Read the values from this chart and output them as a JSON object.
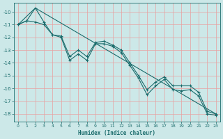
{
  "xlabel": "Humidex (Indice chaleur)",
  "bg_color": "#cce8e8",
  "grid_color_h": "#e8a0a0",
  "grid_color_v": "#e8a0a0",
  "line_color": "#1a6b6b",
  "xlim": [
    -0.5,
    23.5
  ],
  "ylim": [
    -18.6,
    -9.3
  ],
  "yticks": [
    -10,
    -11,
    -12,
    -13,
    -14,
    -15,
    -16,
    -17,
    -18
  ],
  "xticks": [
    0,
    1,
    2,
    3,
    4,
    5,
    6,
    7,
    8,
    9,
    10,
    11,
    12,
    13,
    14,
    15,
    16,
    17,
    18,
    19,
    20,
    21,
    22,
    23
  ],
  "line1_x": [
    0,
    1,
    2,
    3,
    4,
    5,
    6,
    7,
    8,
    9,
    10,
    11,
    12,
    13,
    14,
    15,
    16,
    17,
    18,
    19,
    20,
    21,
    22,
    23
  ],
  "line1_y": [
    -11.0,
    -10.7,
    -9.7,
    -10.8,
    -11.8,
    -12.0,
    -13.8,
    -13.3,
    -13.8,
    -12.5,
    -12.5,
    -12.7,
    -13.2,
    -14.2,
    -15.2,
    -16.5,
    -15.8,
    -15.3,
    -16.1,
    -16.2,
    -16.1,
    -16.6,
    -18.0,
    -18.1
  ],
  "line2_x": [
    0,
    1,
    2,
    3,
    4,
    5,
    6,
    7,
    8,
    9,
    10,
    11,
    12,
    13,
    14,
    15,
    16,
    17,
    18,
    19,
    20,
    21,
    22,
    23
  ],
  "line2_y": [
    -11.0,
    -10.7,
    -10.8,
    -11.0,
    -11.8,
    -11.9,
    -13.5,
    -13.0,
    -13.5,
    -12.4,
    -12.3,
    -12.6,
    -13.0,
    -14.0,
    -15.0,
    -16.1,
    -15.5,
    -15.1,
    -15.8,
    -15.8,
    -15.8,
    -16.3,
    -17.8,
    -18.0
  ],
  "line3_x": [
    0,
    2,
    23
  ],
  "line3_y": [
    -11.0,
    -9.7,
    -18.0
  ],
  "marker": "+",
  "markersize": 3,
  "linewidth": 0.8
}
